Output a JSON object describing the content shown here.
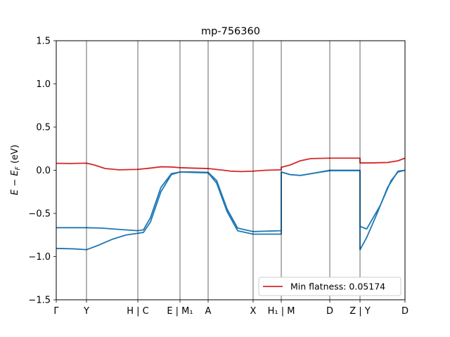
{
  "chart_data": {
    "type": "line",
    "title": "mp-756360",
    "ylabel": "E − E_F (eV)",
    "xlabel": "",
    "ylim": [
      -1.5,
      1.5
    ],
    "xlim": [
      0,
      1
    ],
    "yticks": [
      -1.5,
      -1.0,
      -0.5,
      0.0,
      0.5,
      1.0,
      1.5
    ],
    "ytick_labels": [
      "−1.5",
      "−1.0",
      "−0.5",
      "0.0",
      "0.5",
      "1.0",
      "1.5"
    ],
    "kpoints": [
      {
        "label": "Γ",
        "x": 0.0
      },
      {
        "label": "Y",
        "x": 0.0867
      },
      {
        "label": "H | C",
        "x": 0.2339
      },
      {
        "label": "E | M₁",
        "x": 0.3548
      },
      {
        "label": "A",
        "x": 0.4355
      },
      {
        "label": "X",
        "x": 0.5645
      },
      {
        "label": "H₁ | M",
        "x": 0.6452
      },
      {
        "label": "D",
        "x": 0.7843
      },
      {
        "label": "Z | Y",
        "x": 0.871
      },
      {
        "label": "D",
        "x": 1.0
      }
    ],
    "series": [
      {
        "color": "#d62728",
        "points": [
          [
            0,
            0.08
          ],
          [
            0.04,
            0.078
          ],
          [
            0.0867,
            0.082
          ],
          [
            0.11,
            0.06
          ],
          [
            0.14,
            0.02
          ],
          [
            0.18,
            0.005
          ],
          [
            0.2339,
            0.01
          ],
          [
            0.27,
            0.025
          ],
          [
            0.3,
            0.04
          ],
          [
            0.33,
            0.038
          ],
          [
            0.3548,
            0.03
          ],
          [
            0.39,
            0.025
          ],
          [
            0.4355,
            0.02
          ],
          [
            0.48,
            0.0
          ],
          [
            0.5,
            -0.01
          ],
          [
            0.53,
            -0.015
          ],
          [
            0.5645,
            -0.01
          ],
          [
            0.6,
            0.0
          ],
          [
            0.6452,
            0.005
          ],
          [
            0.6453,
            0.035
          ],
          [
            0.67,
            0.06
          ],
          [
            0.7,
            0.11
          ],
          [
            0.73,
            0.135
          ],
          [
            0.7843,
            0.14
          ],
          [
            0.84,
            0.14
          ],
          [
            0.8709,
            0.14
          ],
          [
            0.871,
            0.085
          ],
          [
            0.9,
            0.085
          ],
          [
            0.95,
            0.09
          ],
          [
            0.98,
            0.11
          ],
          [
            1.0,
            0.14
          ]
        ]
      },
      {
        "color": "#1f77b4",
        "points": [
          [
            0,
            -0.665
          ],
          [
            0.0867,
            -0.665
          ],
          [
            0.13,
            -0.67
          ],
          [
            0.18,
            -0.685
          ],
          [
            0.2339,
            -0.7
          ],
          [
            0.25,
            -0.69
          ],
          [
            0.27,
            -0.55
          ],
          [
            0.3,
            -0.2
          ],
          [
            0.33,
            -0.04
          ],
          [
            0.3548,
            -0.02
          ],
          [
            0.39,
            -0.02
          ],
          [
            0.4355,
            -0.025
          ],
          [
            0.46,
            -0.12
          ],
          [
            0.49,
            -0.45
          ],
          [
            0.52,
            -0.67
          ],
          [
            0.5645,
            -0.71
          ],
          [
            0.6452,
            -0.7
          ],
          [
            0.6453,
            -0.02
          ],
          [
            0.67,
            -0.05
          ],
          [
            0.7,
            -0.06
          ],
          [
            0.73,
            -0.04
          ],
          [
            0.7843,
            -0.005
          ],
          [
            0.8709,
            -0.005
          ],
          [
            0.871,
            -0.65
          ],
          [
            0.89,
            -0.68
          ],
          [
            0.93,
            -0.4
          ],
          [
            0.96,
            -0.12
          ],
          [
            0.98,
            -0.02
          ],
          [
            1.0,
            0.0
          ]
        ]
      },
      {
        "color": "#1f77b4",
        "points": [
          [
            0,
            -0.905
          ],
          [
            0.05,
            -0.91
          ],
          [
            0.0867,
            -0.92
          ],
          [
            0.12,
            -0.87
          ],
          [
            0.16,
            -0.8
          ],
          [
            0.2,
            -0.75
          ],
          [
            0.2339,
            -0.73
          ],
          [
            0.25,
            -0.72
          ],
          [
            0.27,
            -0.6
          ],
          [
            0.3,
            -0.25
          ],
          [
            0.33,
            -0.05
          ],
          [
            0.3548,
            -0.02
          ],
          [
            0.39,
            -0.025
          ],
          [
            0.4355,
            -0.03
          ],
          [
            0.46,
            -0.15
          ],
          [
            0.49,
            -0.48
          ],
          [
            0.52,
            -0.7
          ],
          [
            0.5645,
            -0.74
          ],
          [
            0.6452,
            -0.74
          ],
          [
            0.6453,
            -0.02
          ],
          [
            0.67,
            -0.05
          ],
          [
            0.7,
            -0.06
          ],
          [
            0.73,
            -0.04
          ],
          [
            0.7843,
            0.0
          ],
          [
            0.8709,
            0.0
          ],
          [
            0.871,
            -0.92
          ],
          [
            0.89,
            -0.78
          ],
          [
            0.92,
            -0.5
          ],
          [
            0.95,
            -0.2
          ],
          [
            0.98,
            -0.01
          ],
          [
            1.0,
            0.0
          ]
        ]
      }
    ],
    "legend": {
      "label": "Min flatness: 0.05174",
      "color": "#d62728",
      "placement": "lower right"
    }
  }
}
